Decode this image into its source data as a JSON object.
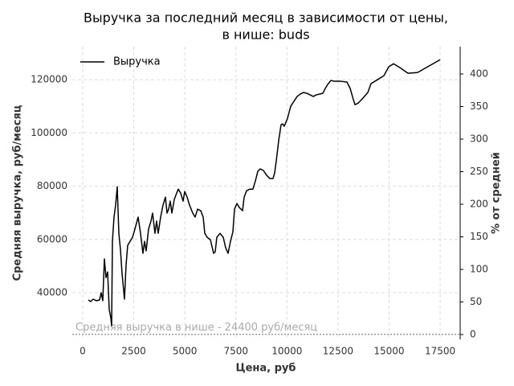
{
  "chart_data": {
    "type": "line",
    "title": [
      "Выручка за последний месяц в зависимости от цены,",
      "в нише: buds"
    ],
    "xlabel": "Цена, руб",
    "ylabel": "Средняя выручка, руб/месяц",
    "y2label": "% от средней",
    "x": [
      275,
      393,
      511,
      668,
      826,
      904,
      983,
      1062,
      1140,
      1219,
      1298,
      1376,
      1416,
      1455,
      1534,
      1612,
      1691,
      1770,
      1848,
      1927,
      2045,
      2123,
      2202,
      2320,
      2438,
      2556,
      2713,
      2831,
      2949,
      3028,
      3106,
      3224,
      3342,
      3421,
      3539,
      3617,
      3696,
      3814,
      3932,
      4050,
      4129,
      4207,
      4286,
      4365,
      4482,
      4600,
      4679,
      4797,
      4915,
      4994,
      5112,
      5230,
      5387,
      5505,
      5623,
      5780,
      5898,
      5977,
      6095,
      6252,
      6409,
      6488,
      6566,
      6724,
      6881,
      6999,
      7117,
      7235,
      7353,
      7432,
      7550,
      7668,
      7825,
      7904,
      8022,
      8179,
      8336,
      8454,
      8572,
      8690,
      8847,
      9004,
      9162,
      9319,
      9397,
      9476,
      9594,
      9712,
      9790,
      9869,
      9948,
      10027,
      10184,
      10341,
      10498,
      10655,
      10813,
      10970,
      11128,
      11285,
      11442,
      11600,
      11757,
      11875,
      11993,
      12150,
      12307,
      12622,
      12936,
      13094,
      13251,
      13330,
      13487,
      13723,
      13959,
      14116,
      14431,
      14745,
      14981,
      15217,
      15532,
      15925,
      16397,
      17498
    ],
    "series": [
      {
        "name": "Выручка",
        "color": "#000000",
        "values": [
          37300,
          36700,
          37600,
          37000,
          37300,
          40000,
          37000,
          52700,
          45700,
          47800,
          33700,
          30600,
          27600,
          59300,
          68400,
          72900,
          79800,
          62300,
          56300,
          47200,
          37600,
          50300,
          57800,
          59300,
          60800,
          63900,
          68400,
          62300,
          54800,
          59300,
          55700,
          63900,
          66900,
          69900,
          62300,
          66900,
          62300,
          68400,
          72900,
          75900,
          69900,
          71400,
          74400,
          69900,
          75000,
          77400,
          78900,
          77400,
          74400,
          78000,
          75900,
          72900,
          69900,
          68400,
          71400,
          70800,
          68400,
          62300,
          60800,
          59900,
          54800,
          55400,
          60800,
          62300,
          60800,
          56900,
          54800,
          59300,
          62900,
          71400,
          73500,
          72000,
          70800,
          75900,
          78300,
          78900,
          78900,
          82000,
          85600,
          86500,
          85900,
          84100,
          82900,
          82900,
          85000,
          89500,
          97100,
          103100,
          103400,
          102500,
          104000,
          105500,
          110000,
          111900,
          113700,
          114600,
          115200,
          114900,
          114300,
          113700,
          114300,
          114600,
          114900,
          116700,
          118200,
          119700,
          119400,
          119400,
          119100,
          116700,
          112500,
          110600,
          111200,
          113100,
          115200,
          118500,
          120000,
          121500,
          124800,
          126000,
          124500,
          122400,
          122700,
          127500
        ]
      }
    ],
    "xlim": [
      -510,
      18480
    ],
    "xticks": [
      0,
      2500,
      5000,
      7500,
      10000,
      12500,
      15000,
      17500
    ],
    "ylim": [
      22500,
      132400
    ],
    "yticks": [
      40000,
      60000,
      80000,
      100000,
      120000
    ],
    "y2lim": [
      -7.4,
      442
    ],
    "y2ticks": [
      0,
      50,
      100,
      150,
      200,
      250,
      300,
      350,
      400
    ],
    "reference_value": 24400,
    "annotation": "Средняя выручка в нише - 24400 руб/месяц",
    "grid": true,
    "legend": "upper left"
  }
}
